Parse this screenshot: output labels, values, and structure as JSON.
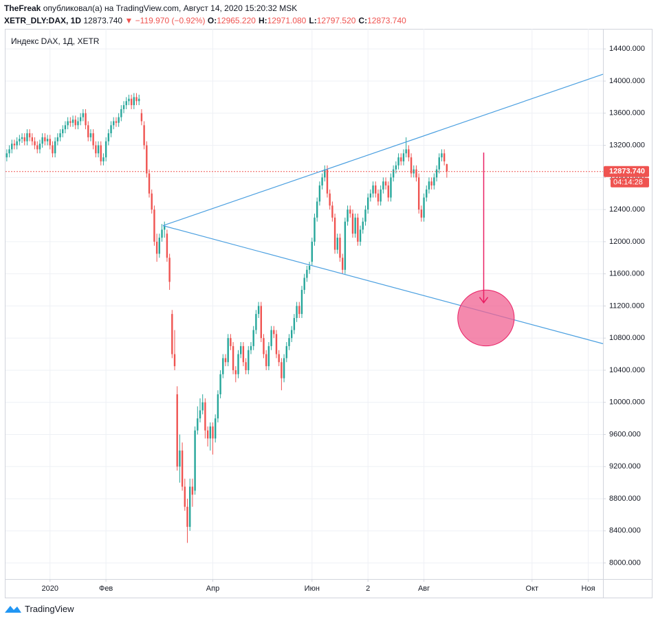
{
  "header": {
    "author": "TheFreak",
    "published": "опубликовал(а) на TradingView.com, Август 14, 2020 15:20:32 MSK",
    "symbol": "XETR_DLY:DAX, 1D",
    "last": "12873.740",
    "change": "▼ −119.970 (−0.92%)",
    "ohlc_legend": [
      {
        "key": "O:",
        "value": "12965.220"
      },
      {
        "key": "H:",
        "value": "12971.080"
      },
      {
        "key": "L:",
        "value": "12797.520"
      },
      {
        "key": "C:",
        "value": "12873.740"
      }
    ]
  },
  "chart_data": {
    "type": "candlestick",
    "title": "Индекс DAX, 1Д, XETR",
    "up_color": "#26a69a",
    "down_color": "#ef5350",
    "grid": true,
    "xlim": [
      -0.5,
      234.4
    ],
    "xticks": [
      {
        "value": 17,
        "label": "2020"
      },
      {
        "value": 39,
        "label": "Фев"
      },
      {
        "value": 81,
        "label": "Апр"
      },
      {
        "value": 120,
        "label": "Июн"
      },
      {
        "value": 142,
        "label": "2"
      },
      {
        "value": 164,
        "label": "Авг"
      },
      {
        "value": 206.5,
        "label": "Окт"
      },
      {
        "value": 228.6,
        "label": "Ноя"
      }
    ],
    "ylim": [
      7800,
      14650
    ],
    "yticks": [
      {
        "value": 8000,
        "label": "8000.000"
      },
      {
        "value": 8400,
        "label": "8400.000"
      },
      {
        "value": 8800,
        "label": "8800.000"
      },
      {
        "value": 9200,
        "label": "9200.000"
      },
      {
        "value": 9600,
        "label": "9600.000"
      },
      {
        "value": 10000,
        "label": "10000.000"
      },
      {
        "value": 10400,
        "label": "10400.000"
      },
      {
        "value": 10800,
        "label": "10800.000"
      },
      {
        "value": 11200,
        "label": "11200.000"
      },
      {
        "value": 11600,
        "label": "11600.000"
      },
      {
        "value": 12000,
        "label": "12000.000"
      },
      {
        "value": 12400,
        "label": "12400.000"
      },
      {
        "value": 12800,
        "label": "12800.000"
      },
      {
        "value": 13200,
        "label": "13200.000"
      },
      {
        "value": 13600,
        "label": "13600.000"
      },
      {
        "value": 14000,
        "label": "14000.000"
      },
      {
        "value": 14400,
        "label": "14400.000"
      }
    ],
    "price_line": {
      "value": 12873.74,
      "label": "12873.740",
      "countdown": "04:14:28",
      "color": "#ef5350"
    },
    "ohlc": [
      [
        13050,
        13150,
        13000,
        13100
      ],
      [
        13100,
        13200,
        13050,
        13150
      ],
      [
        13150,
        13270,
        13100,
        13220
      ],
      [
        13220,
        13270,
        13150,
        13200
      ],
      [
        13200,
        13300,
        13150,
        13250
      ],
      [
        13250,
        13330,
        13200,
        13280
      ],
      [
        13280,
        13350,
        13230,
        13300
      ],
      [
        13300,
        13350,
        13200,
        13250
      ],
      [
        13250,
        13400,
        13200,
        13350
      ],
      [
        13350,
        13400,
        13250,
        13300
      ],
      [
        13300,
        13350,
        13200,
        13250
      ],
      [
        13250,
        13300,
        13150,
        13200
      ],
      [
        13200,
        13250,
        13100,
        13150
      ],
      [
        13150,
        13270,
        13100,
        13220
      ],
      [
        13220,
        13350,
        13170,
        13300
      ],
      [
        13300,
        13350,
        13200,
        13250
      ],
      [
        13250,
        13330,
        13200,
        13280
      ],
      [
        13280,
        13330,
        13150,
        13200
      ],
      [
        13200,
        13250,
        13050,
        13100
      ],
      [
        13100,
        13300,
        13050,
        13250
      ],
      [
        13250,
        13350,
        13200,
        13300
      ],
      [
        13300,
        13400,
        13250,
        13350
      ],
      [
        13350,
        13450,
        13300,
        13400
      ],
      [
        13400,
        13500,
        13350,
        13450
      ],
      [
        13450,
        13550,
        13400,
        13500
      ],
      [
        13500,
        13550,
        13430,
        13480
      ],
      [
        13480,
        13570,
        13430,
        13520
      ],
      [
        13520,
        13570,
        13400,
        13450
      ],
      [
        13450,
        13550,
        13400,
        13500
      ],
      [
        13500,
        13600,
        13450,
        13550
      ],
      [
        13550,
        13650,
        13500,
        13600
      ],
      [
        13600,
        13650,
        13400,
        13450
      ],
      [
        13450,
        13500,
        13250,
        13300
      ],
      [
        13300,
        13400,
        13250,
        13350
      ],
      [
        13350,
        13400,
        13150,
        13200
      ],
      [
        13200,
        13250,
        13050,
        13100
      ],
      [
        13100,
        13250,
        13050,
        13200
      ],
      [
        13200,
        13250,
        12950,
        13000
      ],
      [
        13000,
        13100,
        12950,
        13050
      ],
      [
        13050,
        13300,
        13000,
        13250
      ],
      [
        13250,
        13400,
        13200,
        13350
      ],
      [
        13350,
        13500,
        13300,
        13450
      ],
      [
        13450,
        13550,
        13400,
        13500
      ],
      [
        13500,
        13550,
        13430,
        13480
      ],
      [
        13480,
        13600,
        13430,
        13550
      ],
      [
        13550,
        13700,
        13500,
        13650
      ],
      [
        13650,
        13750,
        13600,
        13700
      ],
      [
        13700,
        13800,
        13650,
        13750
      ],
      [
        13750,
        13830,
        13700,
        13780
      ],
      [
        13780,
        13830,
        13650,
        13700
      ],
      [
        13700,
        13850,
        13650,
        13800
      ],
      [
        13800,
        13850,
        13700,
        13750
      ],
      [
        13750,
        13830,
        13700,
        13780
      ],
      [
        13600,
        13650,
        13450,
        13500
      ],
      [
        13450,
        13500,
        13150,
        13200
      ],
      [
        13200,
        13250,
        12800,
        12850
      ],
      [
        12850,
        12900,
        12550,
        12600
      ],
      [
        12600,
        12650,
        12350,
        12400
      ],
      [
        12400,
        12450,
        11950,
        12000
      ],
      [
        12000,
        12100,
        11750,
        11850
      ],
      [
        11850,
        12100,
        11800,
        12050
      ],
      [
        12050,
        12220,
        12000,
        12150
      ],
      [
        12150,
        12250,
        12050,
        12200
      ],
      [
        12100,
        12150,
        11750,
        11800
      ],
      [
        11800,
        11850,
        11400,
        11500
      ],
      [
        11100,
        11150,
        10550,
        10600
      ],
      [
        10600,
        10900,
        10400,
        10450
      ],
      [
        10100,
        10200,
        9150,
        9200
      ],
      [
        9200,
        9600,
        9000,
        9400
      ],
      [
        9400,
        9500,
        8900,
        8950
      ],
      [
        8950,
        9050,
        8650,
        8700
      ],
      [
        8700,
        8800,
        8250,
        8450
      ],
      [
        8450,
        9050,
        8400,
        8950
      ],
      [
        8950,
        9050,
        8700,
        8850
      ],
      [
        8900,
        9700,
        8850,
        9650
      ],
      [
        9650,
        9950,
        9600,
        9800
      ],
      [
        9800,
        10050,
        9750,
        9900
      ],
      [
        9900,
        10100,
        9850,
        10000
      ],
      [
        10000,
        10050,
        9550,
        9650
      ],
      [
        9650,
        9700,
        9450,
        9550
      ],
      [
        9550,
        9750,
        9400,
        9700
      ],
      [
        9700,
        9750,
        9350,
        9550
      ],
      [
        9550,
        9850,
        9500,
        9800
      ],
      [
        9800,
        10150,
        9750,
        10100
      ],
      [
        10100,
        10400,
        10050,
        10350
      ],
      [
        10350,
        10600,
        10300,
        10550
      ],
      [
        10550,
        10600,
        10450,
        10500
      ],
      [
        10500,
        10850,
        10450,
        10800
      ],
      [
        10800,
        10850,
        10650,
        10700
      ],
      [
        10700,
        10750,
        10350,
        10400
      ],
      [
        10400,
        10450,
        10250,
        10350
      ],
      [
        10350,
        10650,
        10300,
        10600
      ],
      [
        10600,
        10750,
        10550,
        10700
      ],
      [
        10700,
        10750,
        10450,
        10500
      ],
      [
        10500,
        10550,
        10350,
        10400
      ],
      [
        10400,
        10700,
        10350,
        10650
      ],
      [
        10650,
        10750,
        10600,
        10700
      ],
      [
        10700,
        10950,
        10650,
        10900
      ],
      [
        10900,
        11150,
        10850,
        11100
      ],
      [
        11100,
        11250,
        11050,
        11200
      ],
      [
        11200,
        11250,
        10750,
        10800
      ],
      [
        10800,
        10850,
        10550,
        10600
      ],
      [
        10600,
        10650,
        10400,
        10450
      ],
      [
        10450,
        10750,
        10400,
        10700
      ],
      [
        10700,
        10950,
        10650,
        10900
      ],
      [
        10900,
        10950,
        10800,
        10850
      ],
      [
        10850,
        10900,
        10550,
        10600
      ],
      [
        10600,
        10650,
        10450,
        10500
      ],
      [
        10500,
        10550,
        10150,
        10300
      ],
      [
        10300,
        10600,
        10250,
        10550
      ],
      [
        10550,
        10750,
        10500,
        10700
      ],
      [
        10700,
        10850,
        10650,
        10800
      ],
      [
        10800,
        10950,
        10750,
        10900
      ],
      [
        10900,
        11100,
        10850,
        11050
      ],
      [
        11050,
        11250,
        11000,
        11200
      ],
      [
        11200,
        11250,
        11050,
        11100
      ],
      [
        11100,
        11450,
        11050,
        11400
      ],
      [
        11400,
        11600,
        11350,
        11550
      ],
      [
        11550,
        11700,
        11500,
        11650
      ],
      [
        11650,
        11750,
        11600,
        11700
      ],
      [
        11750,
        12050,
        11700,
        12000
      ],
      [
        12000,
        12350,
        11950,
        12300
      ],
      [
        12300,
        12550,
        12250,
        12500
      ],
      [
        12500,
        12750,
        12450,
        12700
      ],
      [
        12700,
        12850,
        12650,
        12800
      ],
      [
        12800,
        12950,
        12750,
        12900
      ],
      [
        12900,
        12950,
        12550,
        12600
      ],
      [
        12600,
        12650,
        12400,
        12450
      ],
      [
        12450,
        12500,
        12250,
        12300
      ],
      [
        12300,
        12350,
        11850,
        11900
      ],
      [
        11900,
        12100,
        11850,
        12050
      ],
      [
        12050,
        12100,
        11750,
        11800
      ],
      [
        11800,
        11850,
        11600,
        11650
      ],
      [
        11650,
        12300,
        11600,
        12250
      ],
      [
        12250,
        12450,
        12200,
        12400
      ],
      [
        12400,
        12450,
        12300,
        12350
      ],
      [
        12350,
        12400,
        12050,
        12100
      ],
      [
        12100,
        12350,
        12050,
        12300
      ],
      [
        12300,
        12350,
        11950,
        12000
      ],
      [
        12000,
        12200,
        11950,
        12150
      ],
      [
        12150,
        12300,
        12100,
        12250
      ],
      [
        12250,
        12450,
        12200,
        12400
      ],
      [
        12400,
        12600,
        12350,
        12550
      ],
      [
        12550,
        12650,
        12500,
        12600
      ],
      [
        12600,
        12750,
        12550,
        12700
      ],
      [
        12700,
        12750,
        12550,
        12600
      ],
      [
        12600,
        12650,
        12450,
        12500
      ],
      [
        12500,
        12700,
        12450,
        12650
      ],
      [
        12650,
        12800,
        12600,
        12750
      ],
      [
        12750,
        12800,
        12650,
        12700
      ],
      [
        12700,
        12750,
        12500,
        12550
      ],
      [
        12550,
        12850,
        12500,
        12800
      ],
      [
        12800,
        12950,
        12750,
        12900
      ],
      [
        12900,
        13000,
        12850,
        12950
      ],
      [
        12950,
        13100,
        12900,
        13050
      ],
      [
        13050,
        13100,
        12950,
        13000
      ],
      [
        13000,
        13150,
        12950,
        13100
      ],
      [
        13100,
        13300,
        13050,
        13150
      ],
      [
        13150,
        13200,
        13000,
        13050
      ],
      [
        13050,
        13100,
        12800,
        12850
      ],
      [
        12850,
        12950,
        12800,
        12900
      ],
      [
        12900,
        12950,
        12750,
        12800
      ],
      [
        12800,
        12850,
        12350,
        12400
      ],
      [
        12400,
        12450,
        12250,
        12300
      ],
      [
        12300,
        12600,
        12250,
        12550
      ],
      [
        12550,
        12700,
        12500,
        12650
      ],
      [
        12650,
        12800,
        12600,
        12750
      ],
      [
        12750,
        12800,
        12650,
        12700
      ],
      [
        12700,
        12850,
        12650,
        12800
      ],
      [
        12800,
        12950,
        12750,
        12900
      ],
      [
        12900,
        13100,
        12850,
        13050
      ],
      [
        13050,
        13150,
        13000,
        13100
      ],
      [
        13100,
        13150,
        12950,
        13000
      ],
      [
        12965.22,
        12971.08,
        12797.52,
        12873.74
      ]
    ],
    "trend_lines": [
      {
        "from": [
          61.4,
          12200
        ],
        "to": [
          234.4,
          14085
        ],
        "color": "#4a9fe0"
      },
      {
        "from": [
          61.4,
          12200
        ],
        "to": [
          234.4,
          10730
        ],
        "color": "#4a9fe0"
      }
    ],
    "ellipse": {
      "center": [
        188.4,
        11050
      ],
      "radius": [
        11.1,
        348
      ],
      "color": "#f06292"
    },
    "arrow": {
      "from": [
        187.5,
        13110
      ],
      "to": [
        187.5,
        11240
      ],
      "color": "#e91e63"
    }
  }
}
